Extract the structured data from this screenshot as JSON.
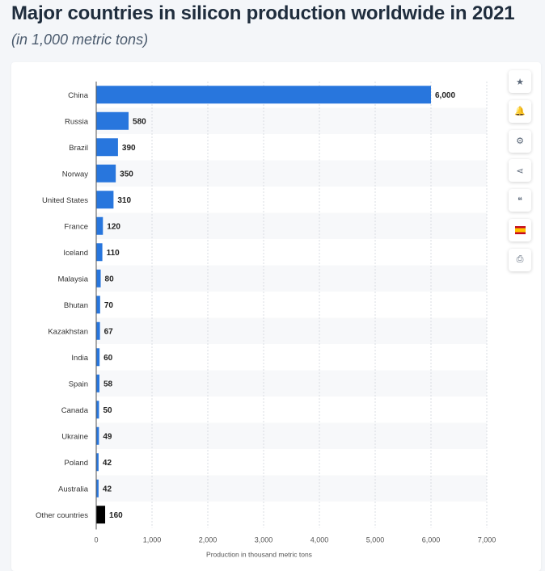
{
  "header": {
    "title": "Major countries in silicon production worldwide in 2021",
    "subtitle": "(in 1,000 metric tons)"
  },
  "toolbar": {
    "buttons": [
      {
        "name": "star-button",
        "icon": "star-icon",
        "glyph": "★"
      },
      {
        "name": "notification-button",
        "icon": "bell-icon",
        "glyph": "🔔"
      },
      {
        "name": "settings-button",
        "icon": "gear-icon",
        "glyph": "⚙"
      },
      {
        "name": "share-button",
        "icon": "share-icon",
        "glyph": "⋖"
      },
      {
        "name": "cite-button",
        "icon": "quote-icon",
        "glyph": "❝"
      },
      {
        "name": "language-button",
        "icon": "spain-flag-icon",
        "glyph": ""
      },
      {
        "name": "print-button",
        "icon": "printer-icon",
        "glyph": "⎙"
      }
    ]
  },
  "chart_data": {
    "type": "bar",
    "orientation": "horizontal",
    "title": "Major countries in silicon production worldwide in 2021",
    "subtitle": "(in 1,000 metric tons)",
    "xlabel": "Production in thousand metric tons",
    "ylabel": "",
    "xlim": [
      0,
      7000
    ],
    "xticks": [
      0,
      1000,
      2000,
      3000,
      4000,
      5000,
      6000,
      7000
    ],
    "xtick_labels": [
      "0",
      "1,000",
      "2,000",
      "3,000",
      "4,000",
      "5,000",
      "6,000",
      "7,000"
    ],
    "categories": [
      "China",
      "Russia",
      "Brazil",
      "Norway",
      "United States",
      "France",
      "Iceland",
      "Malaysia",
      "Bhutan",
      "Kazakhstan",
      "India",
      "Spain",
      "Canada",
      "Ukraine",
      "Poland",
      "Australia",
      "Other countries"
    ],
    "values": [
      6000,
      580,
      390,
      350,
      310,
      120,
      110,
      80,
      70,
      67,
      60,
      58,
      50,
      49,
      42,
      42,
      160
    ],
    "value_labels": [
      "6,000",
      "580",
      "390",
      "350",
      "310",
      "120",
      "110",
      "80",
      "70",
      "67",
      "60",
      "58",
      "50",
      "49",
      "42",
      "42",
      "160"
    ],
    "grid": true,
    "legend": "none",
    "colors": {
      "bar": "#2876dd",
      "highlight": "#000000",
      "stripe": "#f7f8fa",
      "grid": "#d8dde3"
    },
    "highlighted_categories": [
      "Other countries"
    ]
  }
}
